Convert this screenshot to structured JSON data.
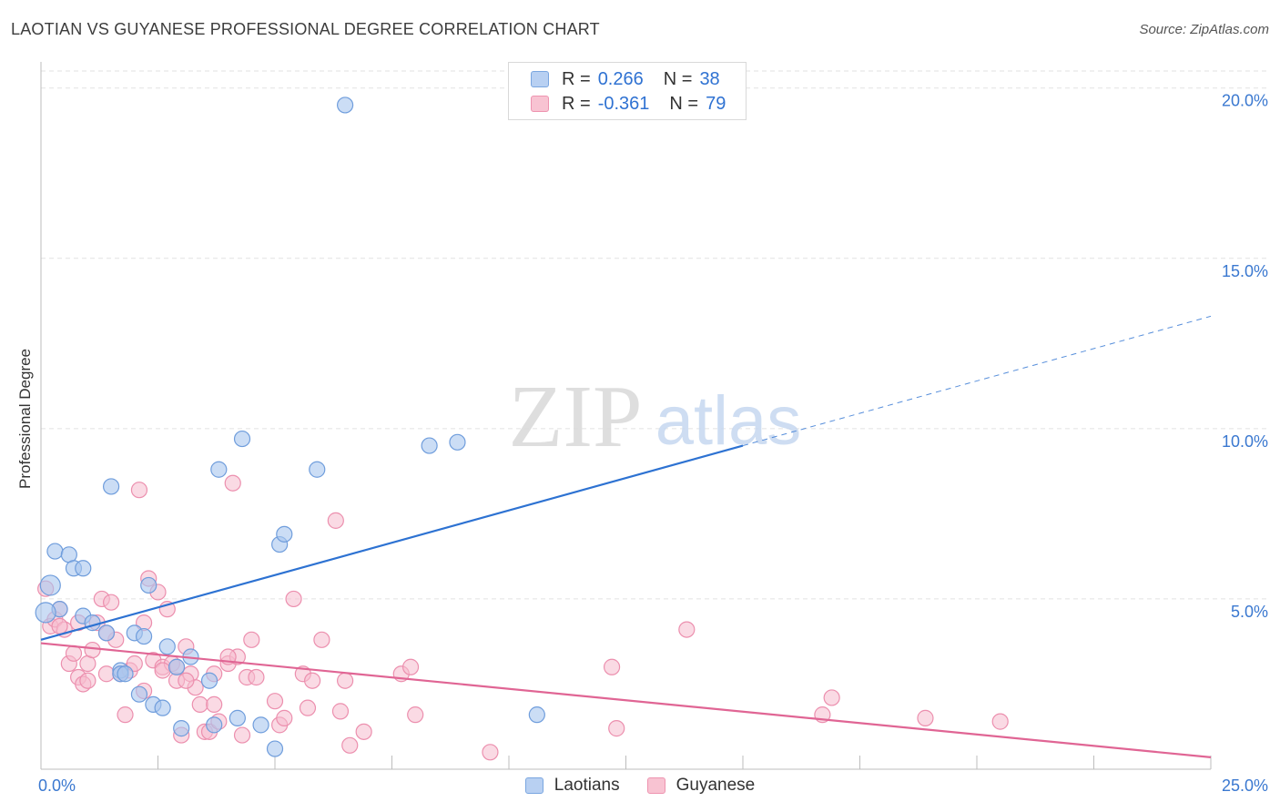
{
  "title": "LAOTIAN VS GUYANESE PROFESSIONAL DEGREE CORRELATION CHART",
  "source": "Source: ZipAtlas.com",
  "watermark": {
    "zip": "ZIP",
    "atlas": "atlas"
  },
  "legend": {
    "r_label": "R =",
    "n_label": "N =",
    "rows": [
      {
        "name": "Laotians",
        "r": "0.266",
        "n": "38",
        "fill": "#b8d0f2",
        "stroke": "#7aa6e0"
      },
      {
        "name": "Guyanese",
        "r": "-0.361",
        "n": "79",
        "fill": "#f8c3d2",
        "stroke": "#ee94b0"
      }
    ]
  },
  "colors": {
    "blue_point": "#a9c6ee",
    "blue_stroke": "#6f9ddc",
    "blue_line": "#2d72d2",
    "pink_point": "#f6bccd",
    "pink_stroke": "#ec8fae",
    "pink_line": "#e06594",
    "grid": "#e2e2e2",
    "axis": "#bdbdbd",
    "tick_label": "#3a78d0"
  },
  "chart_data": {
    "type": "scatter",
    "title": "LAOTIAN VS GUYANESE PROFESSIONAL DEGREE CORRELATION CHART",
    "xlabel": "",
    "ylabel": "Professional Degree",
    "xlim": [
      0,
      25
    ],
    "ylim": [
      0,
      20.5
    ],
    "x_tick_labels": [
      "0.0%",
      "25.0%"
    ],
    "y_ticks": [
      5,
      10,
      15,
      20
    ],
    "y_tick_labels": [
      "5.0%",
      "10.0%",
      "15.0%",
      "20.0%"
    ],
    "grid": true,
    "series": [
      {
        "name": "Laotians",
        "points": [
          [
            0.2,
            5.4
          ],
          [
            0.3,
            6.4
          ],
          [
            0.4,
            4.7
          ],
          [
            0.6,
            6.3
          ],
          [
            0.7,
            5.9
          ],
          [
            0.9,
            5.9
          ],
          [
            0.9,
            4.5
          ],
          [
            1.1,
            4.3
          ],
          [
            1.4,
            4.0
          ],
          [
            1.5,
            8.3
          ],
          [
            1.7,
            2.9
          ],
          [
            1.7,
            2.8
          ],
          [
            1.8,
            2.8
          ],
          [
            2.0,
            4.0
          ],
          [
            2.1,
            2.2
          ],
          [
            2.2,
            3.9
          ],
          [
            2.3,
            5.4
          ],
          [
            2.4,
            1.9
          ],
          [
            2.6,
            1.8
          ],
          [
            2.7,
            3.6
          ],
          [
            2.9,
            3.0
          ],
          [
            3.0,
            1.2
          ],
          [
            3.2,
            3.3
          ],
          [
            3.6,
            2.6
          ],
          [
            3.7,
            1.3
          ],
          [
            3.8,
            8.8
          ],
          [
            4.3,
            9.7
          ],
          [
            4.2,
            1.5
          ],
          [
            4.7,
            1.3
          ],
          [
            5.0,
            0.6
          ],
          [
            5.1,
            6.6
          ],
          [
            5.2,
            6.9
          ],
          [
            5.9,
            8.8
          ],
          [
            6.5,
            19.5
          ],
          [
            8.3,
            9.5
          ],
          [
            8.9,
            9.6
          ],
          [
            10.6,
            1.6
          ],
          [
            0.1,
            4.6
          ]
        ]
      },
      {
        "name": "Guyanese",
        "points": [
          [
            0.1,
            5.3
          ],
          [
            0.2,
            4.2
          ],
          [
            0.3,
            4.4
          ],
          [
            0.4,
            4.7
          ],
          [
            0.5,
            4.1
          ],
          [
            0.6,
            3.1
          ],
          [
            0.7,
            3.4
          ],
          [
            0.8,
            2.7
          ],
          [
            0.9,
            2.5
          ],
          [
            1.0,
            3.1
          ],
          [
            1.1,
            3.5
          ],
          [
            1.2,
            4.3
          ],
          [
            1.3,
            5.0
          ],
          [
            1.4,
            2.8
          ],
          [
            1.5,
            4.9
          ],
          [
            1.6,
            3.8
          ],
          [
            1.7,
            2.8
          ],
          [
            1.8,
            1.6
          ],
          [
            1.9,
            2.9
          ],
          [
            2.0,
            3.1
          ],
          [
            2.1,
            8.2
          ],
          [
            2.2,
            2.3
          ],
          [
            2.2,
            4.3
          ],
          [
            2.3,
            5.6
          ],
          [
            2.4,
            3.2
          ],
          [
            2.5,
            5.2
          ],
          [
            2.6,
            3.0
          ],
          [
            2.7,
            4.7
          ],
          [
            2.8,
            3.1
          ],
          [
            2.9,
            2.6
          ],
          [
            3.0,
            1.0
          ],
          [
            3.1,
            3.6
          ],
          [
            3.2,
            2.8
          ],
          [
            3.3,
            2.4
          ],
          [
            3.4,
            1.9
          ],
          [
            3.5,
            1.1
          ],
          [
            3.6,
            1.1
          ],
          [
            3.7,
            1.9
          ],
          [
            3.8,
            1.4
          ],
          [
            4.0,
            3.1
          ],
          [
            4.1,
            8.4
          ],
          [
            4.2,
            3.3
          ],
          [
            4.3,
            1.0
          ],
          [
            4.4,
            2.7
          ],
          [
            4.5,
            3.8
          ],
          [
            4.6,
            2.7
          ],
          [
            5.0,
            2.0
          ],
          [
            5.1,
            1.3
          ],
          [
            5.2,
            1.5
          ],
          [
            5.4,
            5.0
          ],
          [
            5.6,
            2.8
          ],
          [
            5.7,
            1.8
          ],
          [
            5.8,
            2.6
          ],
          [
            6.0,
            3.8
          ],
          [
            6.3,
            7.3
          ],
          [
            6.4,
            1.7
          ],
          [
            6.5,
            2.6
          ],
          [
            6.6,
            0.7
          ],
          [
            6.9,
            1.1
          ],
          [
            7.7,
            2.8
          ],
          [
            7.9,
            3.0
          ],
          [
            8.0,
            1.6
          ],
          [
            9.6,
            0.5
          ],
          [
            12.2,
            3.0
          ],
          [
            12.3,
            1.2
          ],
          [
            13.8,
            4.1
          ],
          [
            16.7,
            1.6
          ],
          [
            16.9,
            2.1
          ],
          [
            18.9,
            1.5
          ],
          [
            20.5,
            1.4
          ],
          [
            3.1,
            2.6
          ],
          [
            1.0,
            2.6
          ],
          [
            4.0,
            3.3
          ],
          [
            2.9,
            3.0
          ],
          [
            1.4,
            4.0
          ],
          [
            0.8,
            4.3
          ],
          [
            2.6,
            2.9
          ],
          [
            3.7,
            2.8
          ],
          [
            0.4,
            4.2
          ]
        ]
      }
    ],
    "trend_lines": [
      {
        "series": "Laotians",
        "x": [
          0,
          15
        ],
        "y": [
          3.8,
          9.5
        ],
        "dashed_extension": {
          "x": [
            15,
            25
          ],
          "y": [
            9.5,
            13.3
          ]
        }
      },
      {
        "series": "Guyanese",
        "x": [
          0,
          25
        ],
        "y": [
          3.7,
          0.35
        ]
      }
    ]
  }
}
